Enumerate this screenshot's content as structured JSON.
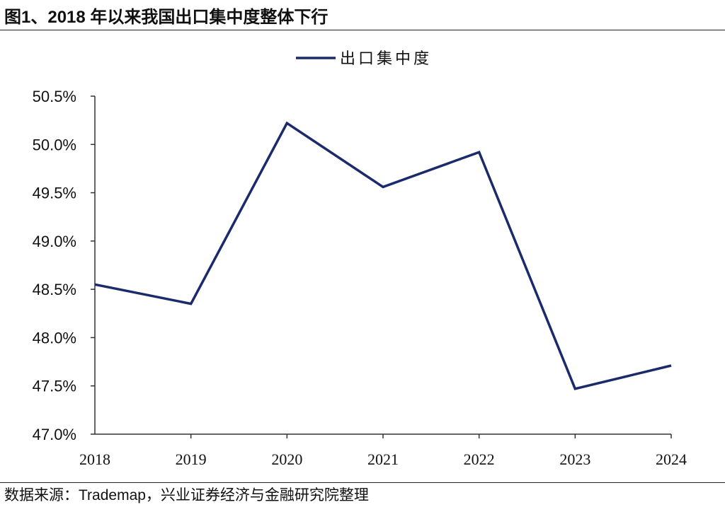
{
  "header": {
    "title": "图1、2018 年以来我国出口集中度整体下行"
  },
  "footer": {
    "source": "数据来源：Trademap，兴业证券经济与金融研究院整理"
  },
  "chart_data": {
    "type": "line",
    "title": "",
    "xlabel": "",
    "ylabel": "",
    "categories": [
      "2018",
      "2019",
      "2020",
      "2021",
      "2022",
      "2023",
      "2024"
    ],
    "series": [
      {
        "name": "出口集中度",
        "values": [
          48.55,
          48.35,
          50.22,
          49.56,
          49.92,
          47.47,
          47.71
        ],
        "color": "#1b2a6b"
      }
    ],
    "ylim": [
      47.0,
      50.5
    ],
    "yticks": [
      50.5,
      50.0,
      49.5,
      49.0,
      48.5,
      48.0,
      47.5,
      47.0
    ],
    "ytick_labels": [
      "50.5%",
      "50.0%",
      "49.5%",
      "49.0%",
      "48.5%",
      "48.0%",
      "47.5%",
      "47.0%"
    ],
    "legend": "top-center",
    "grid": false
  }
}
